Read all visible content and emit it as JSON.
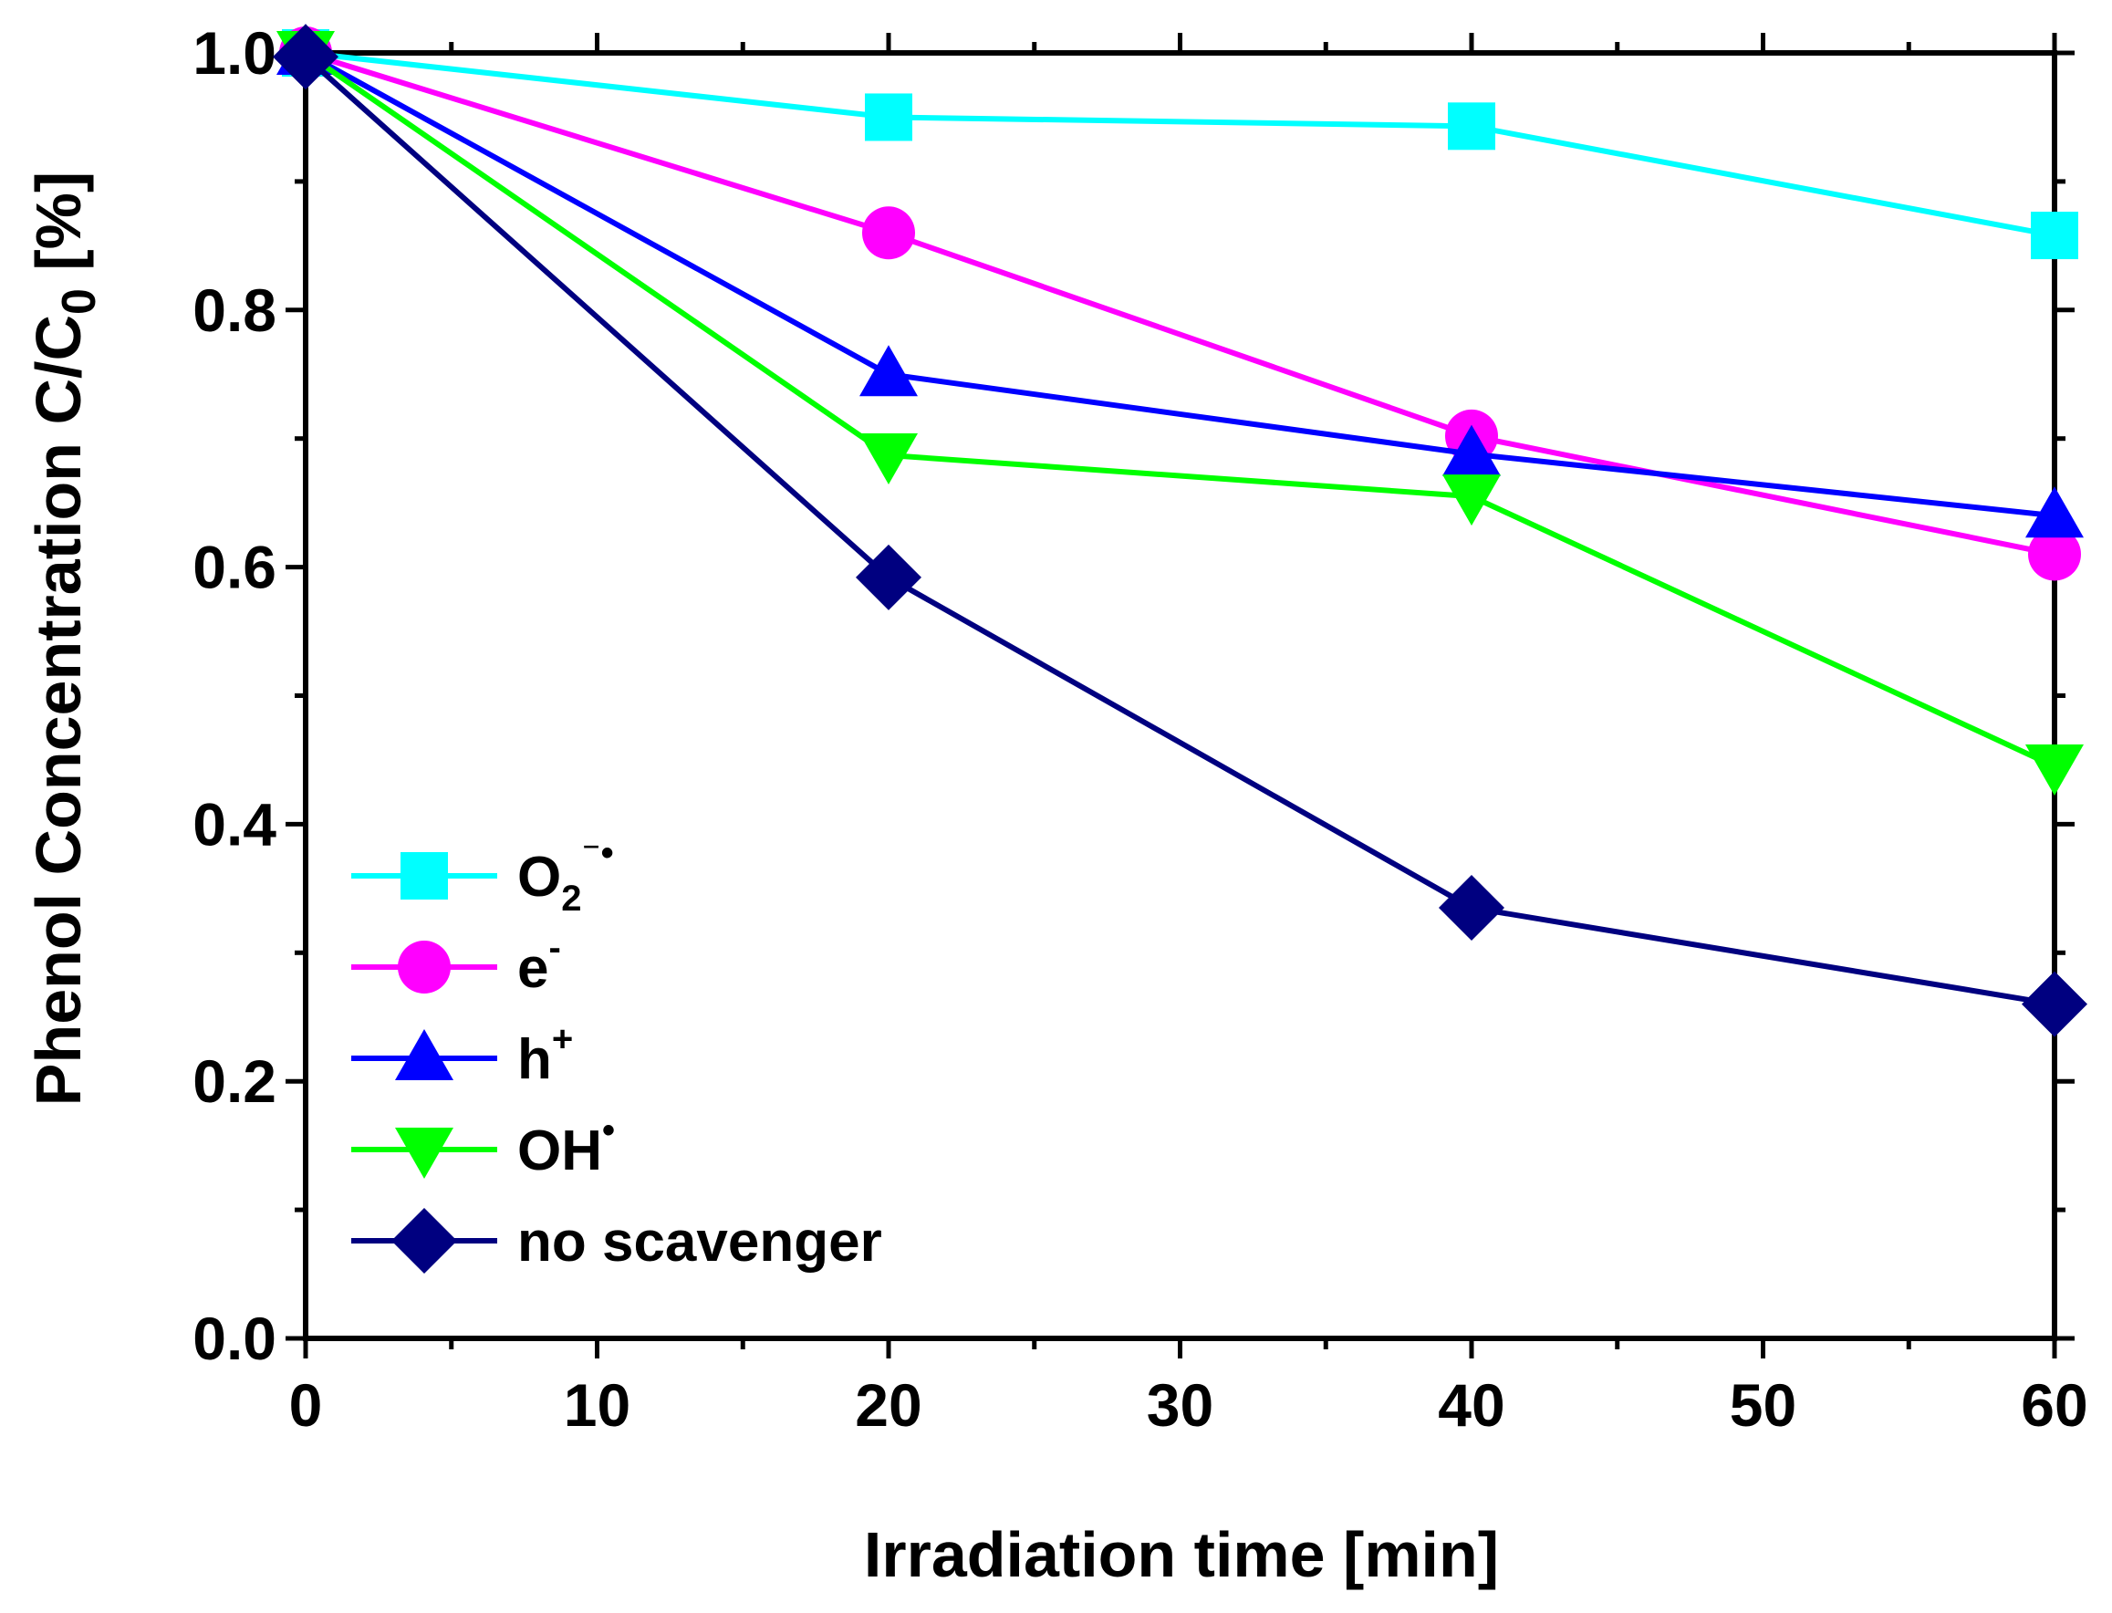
{
  "chart_data": {
    "type": "line",
    "title": "",
    "xlabel": "Irradiation time [min]",
    "ylabel": "Phenol Concentration C/C0 [%]",
    "ylabel_parts": {
      "main": "Phenol Concentration C/C",
      "sub": "0",
      "tail": " [%]"
    },
    "xlim": [
      0,
      60
    ],
    "ylim": [
      0,
      1.0
    ],
    "x_ticks": [
      0,
      10,
      20,
      30,
      40,
      50,
      60
    ],
    "x_tick_labels": [
      "0",
      "10",
      "20",
      "30",
      "40",
      "50",
      "60"
    ],
    "y_ticks": [
      0,
      0.2,
      0.4,
      0.6,
      0.8,
      1.0
    ],
    "y_tick_labels": [
      "0.0",
      "0.2",
      "0.4",
      "0.6",
      "0.8",
      "1.0"
    ],
    "x_minor_step": 5,
    "y_minor_step": 0.1,
    "grid": false,
    "legend_position": "bottom-left",
    "x": [
      0,
      20,
      40,
      60
    ],
    "series": [
      {
        "name": "O2−•",
        "label_main": "O",
        "label_sub": "2",
        "label_sup": "⁻•",
        "color": "#00FFFF",
        "marker": "square",
        "values": [
          1.0,
          0.95,
          0.943,
          0.858
        ]
      },
      {
        "name": "e-",
        "label_main": "e",
        "label_sub": "",
        "label_sup": "-",
        "color": "#FF00FF",
        "marker": "circle",
        "values": [
          1.0,
          0.86,
          0.702,
          0.61
        ]
      },
      {
        "name": "h+",
        "label_main": "h",
        "label_sub": "",
        "label_sup": "+",
        "color": "#0000FF",
        "marker": "triangle-up",
        "values": [
          1.0,
          0.75,
          0.688,
          0.64
        ]
      },
      {
        "name": "OH•",
        "label_main": "OH",
        "label_sub": "",
        "label_sup": "•",
        "color": "#00FF00",
        "marker": "triangle-down",
        "values": [
          1.0,
          0.687,
          0.655,
          0.445
        ]
      },
      {
        "name": "no scavenger",
        "label_main": "no scavenger",
        "label_sub": "",
        "label_sup": "",
        "color": "#000080",
        "marker": "diamond",
        "values": [
          0.997,
          0.592,
          0.335,
          0.26
        ]
      }
    ]
  }
}
